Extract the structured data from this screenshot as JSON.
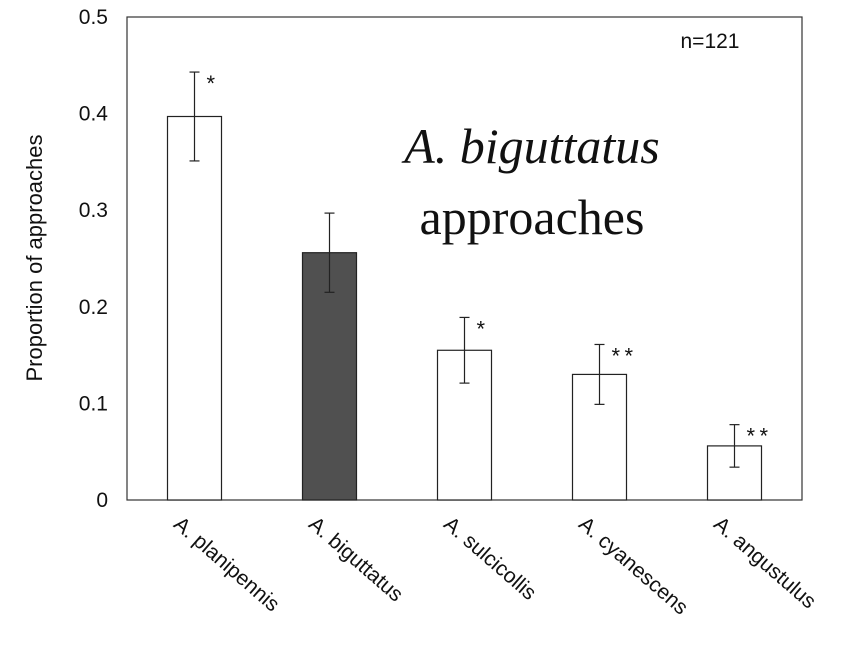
{
  "chart_data": {
    "type": "bar",
    "categories": [
      "A. planipennis",
      "A. biguttatus",
      "A. sulcicollis",
      "A. cyanescens",
      "A. angustulus"
    ],
    "values": [
      0.397,
      0.256,
      0.155,
      0.13,
      0.056
    ],
    "error": [
      0.046,
      0.041,
      0.034,
      0.031,
      0.022
    ],
    "significance": [
      "*",
      "",
      "*",
      "**",
      "**"
    ],
    "bar_colors": [
      "#ffffff",
      "#505050",
      "#ffffff",
      "#ffffff",
      "#ffffff"
    ],
    "yticks": [
      "0",
      "0.1",
      "0.2",
      "0.3",
      "0.4",
      "0.5"
    ],
    "ylim": [
      0,
      0.5
    ],
    "ylabel": "Proportion of approaches",
    "xlabel": "",
    "title_italic": "A. biguttatus",
    "title_plain": "approaches",
    "annotation": "n=121",
    "grid": false
  }
}
